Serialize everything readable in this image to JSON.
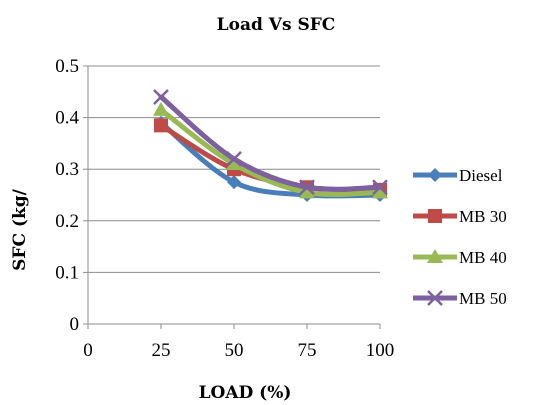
{
  "chart_data": {
    "type": "line",
    "title": "Load Vs SFC",
    "xlabel": "LOAD (%)",
    "ylabel": "SFC (kg/",
    "xlim": [
      0,
      100
    ],
    "ylim": [
      0,
      0.5
    ],
    "xticks": [
      0,
      25,
      50,
      75,
      100
    ],
    "yticks": [
      0,
      0.1,
      0.2,
      0.3,
      0.4,
      0.5
    ],
    "xtick_labels": [
      "0",
      "25",
      "50",
      "75",
      "100"
    ],
    "ytick_labels": [
      "0",
      "0.1",
      "0.2",
      "0.3",
      "0.4",
      "0.5"
    ],
    "grid": "horizontal",
    "legend_position": "right",
    "x": [
      25,
      50,
      75,
      100
    ],
    "series": [
      {
        "name": "Diesel",
        "values": [
          0.39,
          0.275,
          0.25,
          0.25
        ],
        "color": "#4a7ebb",
        "marker": "diamond"
      },
      {
        "name": "MB 30",
        "values": [
          0.385,
          0.3,
          0.265,
          0.26
        ],
        "color": "#be4b48",
        "marker": "square"
      },
      {
        "name": "MB 40",
        "values": [
          0.415,
          0.31,
          0.255,
          0.255
        ],
        "color": "#98b954",
        "marker": "triangle"
      },
      {
        "name": "MB 50",
        "values": [
          0.44,
          0.32,
          0.265,
          0.265
        ],
        "color": "#7d60a0",
        "marker": "x"
      }
    ]
  }
}
